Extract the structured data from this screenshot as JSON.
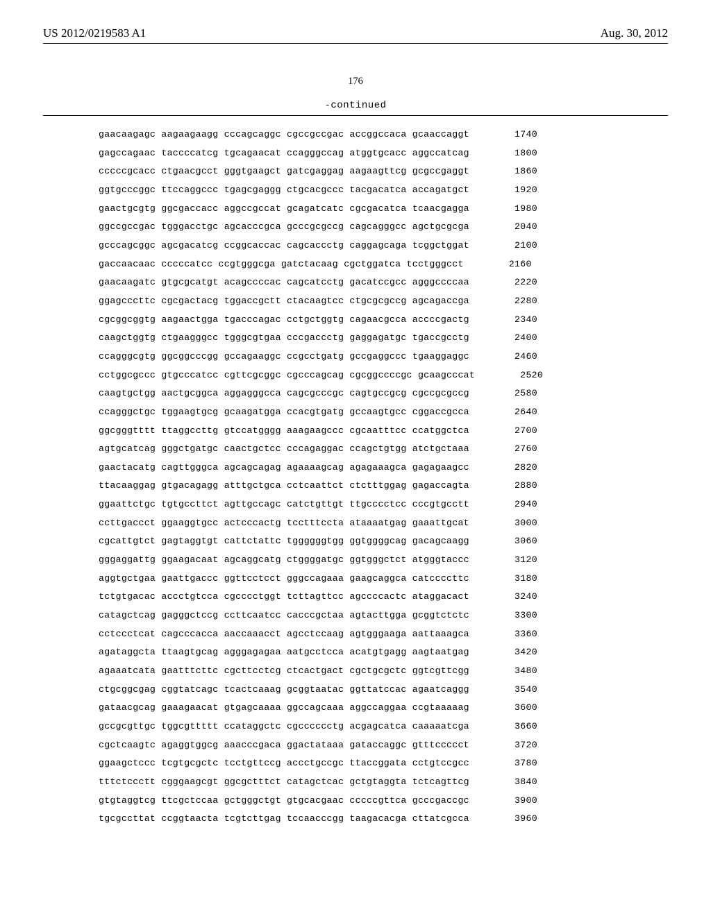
{
  "header": {
    "left": "US 2012/0219583 A1",
    "right": "Aug. 30, 2012"
  },
  "page_number": "176",
  "continued_label": "-continued",
  "sequence": {
    "font_family": "Courier New",
    "font_size_pt": 10,
    "line_height": 2.02,
    "text_color": "#000000",
    "background_color": "#ffffff",
    "group_size": 10,
    "groups_per_line": 6,
    "rows": [
      {
        "groups": [
          "gaacaagagc",
          "aagaagaagg",
          "cccagcaggc",
          "cgccgccgac",
          "accggccaca",
          "gcaaccaggt"
        ],
        "pos": 1740
      },
      {
        "groups": [
          "gagccagaac",
          "taccccatcg",
          "tgcagaacat",
          "ccagggccag",
          "atggtgcacc",
          "aggccatcag"
        ],
        "pos": 1800
      },
      {
        "groups": [
          "cccccgcacc",
          "ctgaacgcct",
          "gggtgaagct",
          "gatcgaggag",
          "aagaagttcg",
          "gcgccgaggt"
        ],
        "pos": 1860
      },
      {
        "groups": [
          "ggtgcccggc",
          "ttccaggccc",
          "tgagcgaggg",
          "ctgcacgccc",
          "tacgacatca",
          "accagatgct"
        ],
        "pos": 1920
      },
      {
        "groups": [
          "gaactgcgtg",
          "ggcgaccacc",
          "aggccgccat",
          "gcagatcatc",
          "cgcgacatca",
          "tcaacgagga"
        ],
        "pos": 1980
      },
      {
        "groups": [
          "ggccgccgac",
          "tgggacctgc",
          "agcacccgca",
          "gcccgcgccg",
          "cagcagggcc",
          "agctgcgcga"
        ],
        "pos": 2040
      },
      {
        "groups": [
          "gcccagcggc",
          "agcgacatcg",
          "ccggcaccac",
          "cagcaccctg",
          "caggagcaga",
          "tcggctggat"
        ],
        "pos": 2100
      },
      {
        "groups": [
          "gaccaacaac",
          "cccccatcc",
          "ccgtgggcga",
          "gatctacaag",
          "cgctggatca",
          "tcctgggcct"
        ],
        "pos": 2160
      },
      {
        "groups": [
          "gaacaagatc",
          "gtgcgcatgt",
          "acagccccac",
          "cagcatcctg",
          "gacatccgcc",
          "agggccccaa"
        ],
        "pos": 2220
      },
      {
        "groups": [
          "ggagcccttc",
          "cgcgactacg",
          "tggaccgctt",
          "ctacaagtcc",
          "ctgcgcgccg",
          "agcagaccga"
        ],
        "pos": 2280
      },
      {
        "groups": [
          "cgcggcggtg",
          "aagaactgga",
          "tgacccagac",
          "cctgctggtg",
          "cagaacgcca",
          "accccgactg"
        ],
        "pos": 2340
      },
      {
        "groups": [
          "caagctggtg",
          "ctgaagggcc",
          "tgggcgtgaa",
          "cccgaccctg",
          "gaggagatgc",
          "tgaccgcctg"
        ],
        "pos": 2400
      },
      {
        "groups": [
          "ccagggcgtg",
          "ggcggcccgg",
          "gccagaaggc",
          "ccgcctgatg",
          "gccgaggccc",
          "tgaaggaggc"
        ],
        "pos": 2460
      },
      {
        "groups": [
          "cctggcgccc",
          "gtgcccatcc",
          "cgttcgcggc",
          "cgcccagcag",
          "cgcggccccgc",
          "gcaagcccat"
        ],
        "pos": 2520
      },
      {
        "groups": [
          "caagtgctgg",
          "aactgcggca",
          "aggagggcca",
          "cagcgcccgc",
          "cagtgccgcg",
          "cgccgcgccg"
        ],
        "pos": 2580
      },
      {
        "groups": [
          "ccagggctgc",
          "tggaagtgcg",
          "gcaagatgga",
          "ccacgtgatg",
          "gccaagtgcc",
          "cggaccgcca"
        ],
        "pos": 2640
      },
      {
        "groups": [
          "ggcgggtttt",
          "ttaggccttg",
          "gtccatgggg",
          "aaagaagccc",
          "cgcaatttcc",
          "ccatggctca"
        ],
        "pos": 2700
      },
      {
        "groups": [
          "agtgcatcag",
          "gggctgatgc",
          "caactgctcc",
          "cccagaggac",
          "ccagctgtgg",
          "atctgctaaa"
        ],
        "pos": 2760
      },
      {
        "groups": [
          "gaactacatg",
          "cagttgggca",
          "agcagcagag",
          "agaaaagcag",
          "agagaaagca",
          "gagagaagcc"
        ],
        "pos": 2820
      },
      {
        "groups": [
          "ttacaaggag",
          "gtgacagagg",
          "atttgctgca",
          "cctcaattct",
          "ctctttggag",
          "gagaccagta"
        ],
        "pos": 2880
      },
      {
        "groups": [
          "ggaattctgc",
          "tgtgccttct",
          "agttgccagc",
          "catctgttgt",
          "ttgcccctcc",
          "cccgtgcctt"
        ],
        "pos": 2940
      },
      {
        "groups": [
          "ccttgaccct",
          "ggaaggtgcc",
          "actcccactg",
          "tcctttccta",
          "ataaaatgag",
          "gaaattgcat"
        ],
        "pos": 3000
      },
      {
        "groups": [
          "cgcattgtct",
          "gagtaggtgt",
          "cattctattc",
          "tggggggtgg",
          "ggtggggcag",
          "gacagcaagg"
        ],
        "pos": 3060
      },
      {
        "groups": [
          "gggaggattg",
          "ggaagacaat",
          "agcaggcatg",
          "ctggggatgc",
          "ggtgggctct",
          "atgggtaccc"
        ],
        "pos": 3120
      },
      {
        "groups": [
          "aggtgctgaa",
          "gaattgaccc",
          "ggttcctcct",
          "gggccagaaa",
          "gaagcaggca",
          "catccccttc"
        ],
        "pos": 3180
      },
      {
        "groups": [
          "tctgtgacac",
          "accctgtcca",
          "cgcccctggt",
          "tcttagttcc",
          "agccccactc",
          "ataggacact"
        ],
        "pos": 3240
      },
      {
        "groups": [
          "catagctcag",
          "gagggctccg",
          "ccttcaatcc",
          "cacccgctaa",
          "agtacttgga",
          "gcggtctctc"
        ],
        "pos": 3300
      },
      {
        "groups": [
          "cctccctcat",
          "cagcccacca",
          "aaccaaacct",
          "agcctccaag",
          "agtgggaaga",
          "aattaaagca"
        ],
        "pos": 3360
      },
      {
        "groups": [
          "agataggcta",
          "ttaagtgcag",
          "agggagagaa",
          "aatgcctcca",
          "acatgtgagg",
          "aagtaatgag"
        ],
        "pos": 3420
      },
      {
        "groups": [
          "agaaatcata",
          "gaatttcttc",
          "cgcttcctcg",
          "ctcactgact",
          "cgctgcgctc",
          "ggtcgttcgg"
        ],
        "pos": 3480
      },
      {
        "groups": [
          "ctgcggcgag",
          "cggtatcagc",
          "tcactcaaag",
          "gcggtaatac",
          "ggttatccac",
          "agaatcaggg"
        ],
        "pos": 3540
      },
      {
        "groups": [
          "gataacgcag",
          "gaaagaacat",
          "gtgagcaaaa",
          "ggccagcaaa",
          "aggccaggaa",
          "ccgtaaaaag"
        ],
        "pos": 3600
      },
      {
        "groups": [
          "gccgcgttgc",
          "tggcgttttt",
          "ccataggctc",
          "cgcccccctg",
          "acgagcatca",
          "caaaaatcga"
        ],
        "pos": 3660
      },
      {
        "groups": [
          "cgctcaagtc",
          "agaggtggcg",
          "aaacccgaca",
          "ggactataaa",
          "gataccaggc",
          "gtttccccct"
        ],
        "pos": 3720
      },
      {
        "groups": [
          "ggaagctccc",
          "tcgtgcgctc",
          "tcctgttccg",
          "accctgccgc",
          "ttaccggata",
          "cctgtccgcc"
        ],
        "pos": 3780
      },
      {
        "groups": [
          "tttctccctt",
          "cgggaagcgt",
          "ggcgctttct",
          "catagctcac",
          "gctgtaggta",
          "tctcagttcg"
        ],
        "pos": 3840
      },
      {
        "groups": [
          "gtgtaggtcg",
          "ttcgctccaa",
          "gctgggctgt",
          "gtgcacgaac",
          "cccccgttca",
          "gcccgaccgc"
        ],
        "pos": 3900
      },
      {
        "groups": [
          "tgcgccttat",
          "ccggtaacta",
          "tcgtcttgag",
          "tccaacccgg",
          "taagacacga",
          "cttatcgcca"
        ],
        "pos": 3960
      }
    ]
  }
}
